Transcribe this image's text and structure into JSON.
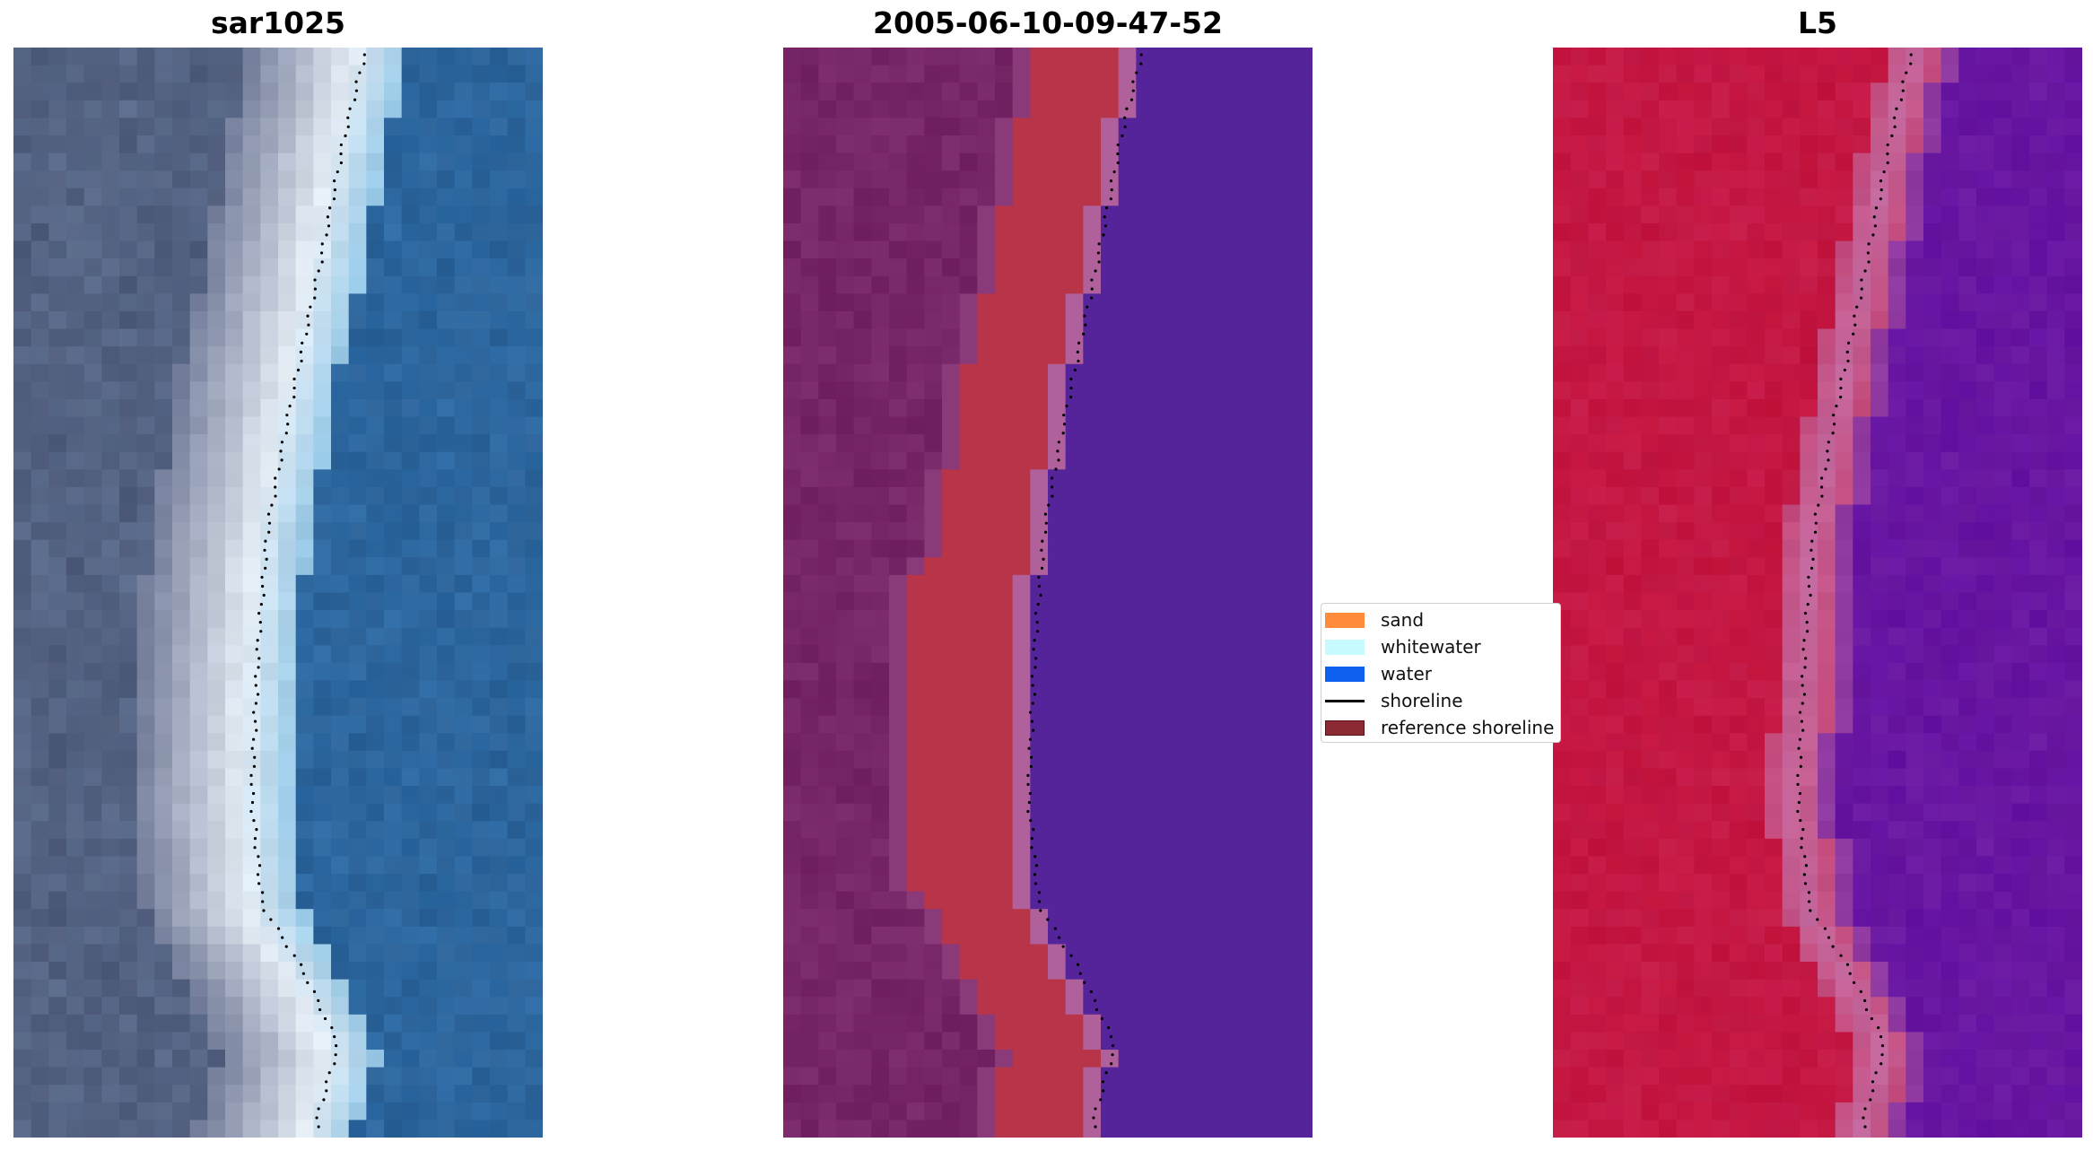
{
  "panels": [
    {
      "title": "sar1025",
      "kind": "rgb"
    },
    {
      "title": "2005-06-10-09-47-52",
      "kind": "classified"
    },
    {
      "title": "L5",
      "kind": "ndwi"
    }
  ],
  "legend": {
    "items": [
      {
        "label": "sand",
        "color": "#ff8c3a",
        "type": "patch"
      },
      {
        "label": "whitewater",
        "color": "#c8fbff",
        "type": "patch"
      },
      {
        "label": "water",
        "color": "#1060f0",
        "type": "patch"
      },
      {
        "label": "shoreline",
        "color": "#000000",
        "type": "line"
      },
      {
        "label": "reference shoreline",
        "color": "#8b2a33",
        "type": "patch"
      }
    ]
  },
  "colors": {
    "classified_land": "#762566",
    "classified_sand": "#b83549",
    "classified_buffer": "#b0609a",
    "classified_water": "#55249a",
    "ndwi_land": "#c3143e",
    "ndwi_buffer": "#c46aa0",
    "ndwi_water": "#6412a2",
    "rgb_land": "#5a6a8a",
    "rgb_beach": "#e6eef6",
    "rgb_water": "#2e6aa3",
    "shoreline_points": "#000000"
  }
}
